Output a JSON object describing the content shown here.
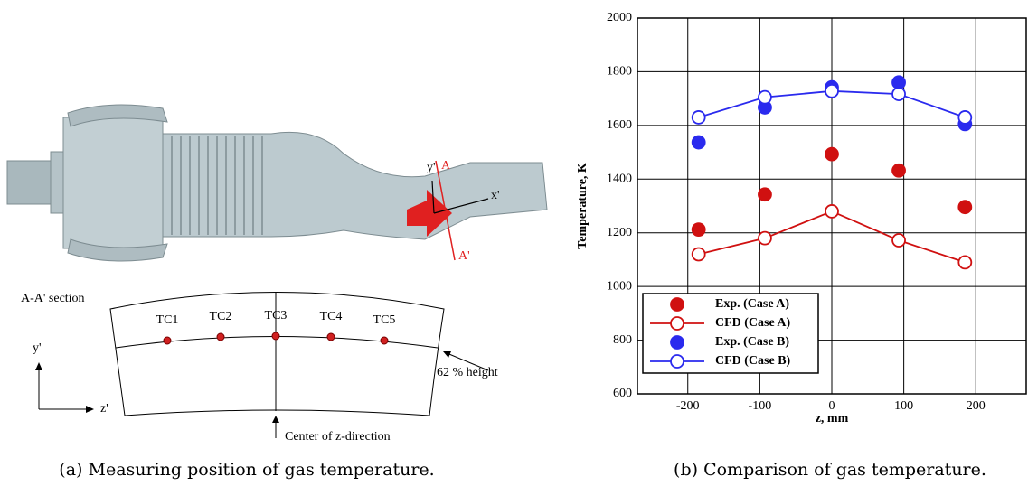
{
  "diagram": {
    "label_y_prime": "y'",
    "label_a": "A",
    "label_x_prime": "x'",
    "label_a_prime": "A'",
    "section_title": "A-A' section",
    "thermocouples": [
      "TC1",
      "TC2",
      "TC3",
      "TC4",
      "TC5"
    ],
    "axis_y": "y'",
    "axis_z": "z'",
    "height_note": "62 % height",
    "center_note": "Center of z-direction"
  },
  "captions": {
    "a": "(a) Measuring position of gas temperature.",
    "b": "(b) Comparison of gas temperature."
  },
  "chart_data": {
    "type": "scatter",
    "x_label": "z, mm",
    "y_label": "Temperature, K",
    "xlim": [
      -270,
      270
    ],
    "xticks": [
      -200,
      -100,
      0,
      100,
      200
    ],
    "ylim": [
      600,
      2000
    ],
    "yticks": [
      600,
      800,
      1000,
      1200,
      1400,
      1600,
      1800,
      2000
    ],
    "grid": true,
    "legend": "lower left",
    "x": [
      -185,
      -93,
      0,
      93,
      185
    ],
    "series": [
      {
        "name": "Exp. (Case A)",
        "color": "#d01010",
        "mode": "markers",
        "filled": true,
        "values": [
          1212,
          1343,
          1493,
          1432,
          1296
        ]
      },
      {
        "name": "CFD (Case A)",
        "color": "#d01010",
        "mode": "lines+markers",
        "filled": false,
        "values": [
          1120,
          1180,
          1280,
          1172,
          1090
        ]
      },
      {
        "name": "Exp. (Case B)",
        "color": "#2a2aee",
        "mode": "markers",
        "filled": true,
        "values": [
          1537,
          1667,
          1742,
          1760,
          1605
        ]
      },
      {
        "name": "CFD (Case B)",
        "color": "#2a2aee",
        "mode": "lines+markers",
        "filled": false,
        "values": [
          1630,
          1705,
          1728,
          1717,
          1630
        ]
      }
    ]
  }
}
